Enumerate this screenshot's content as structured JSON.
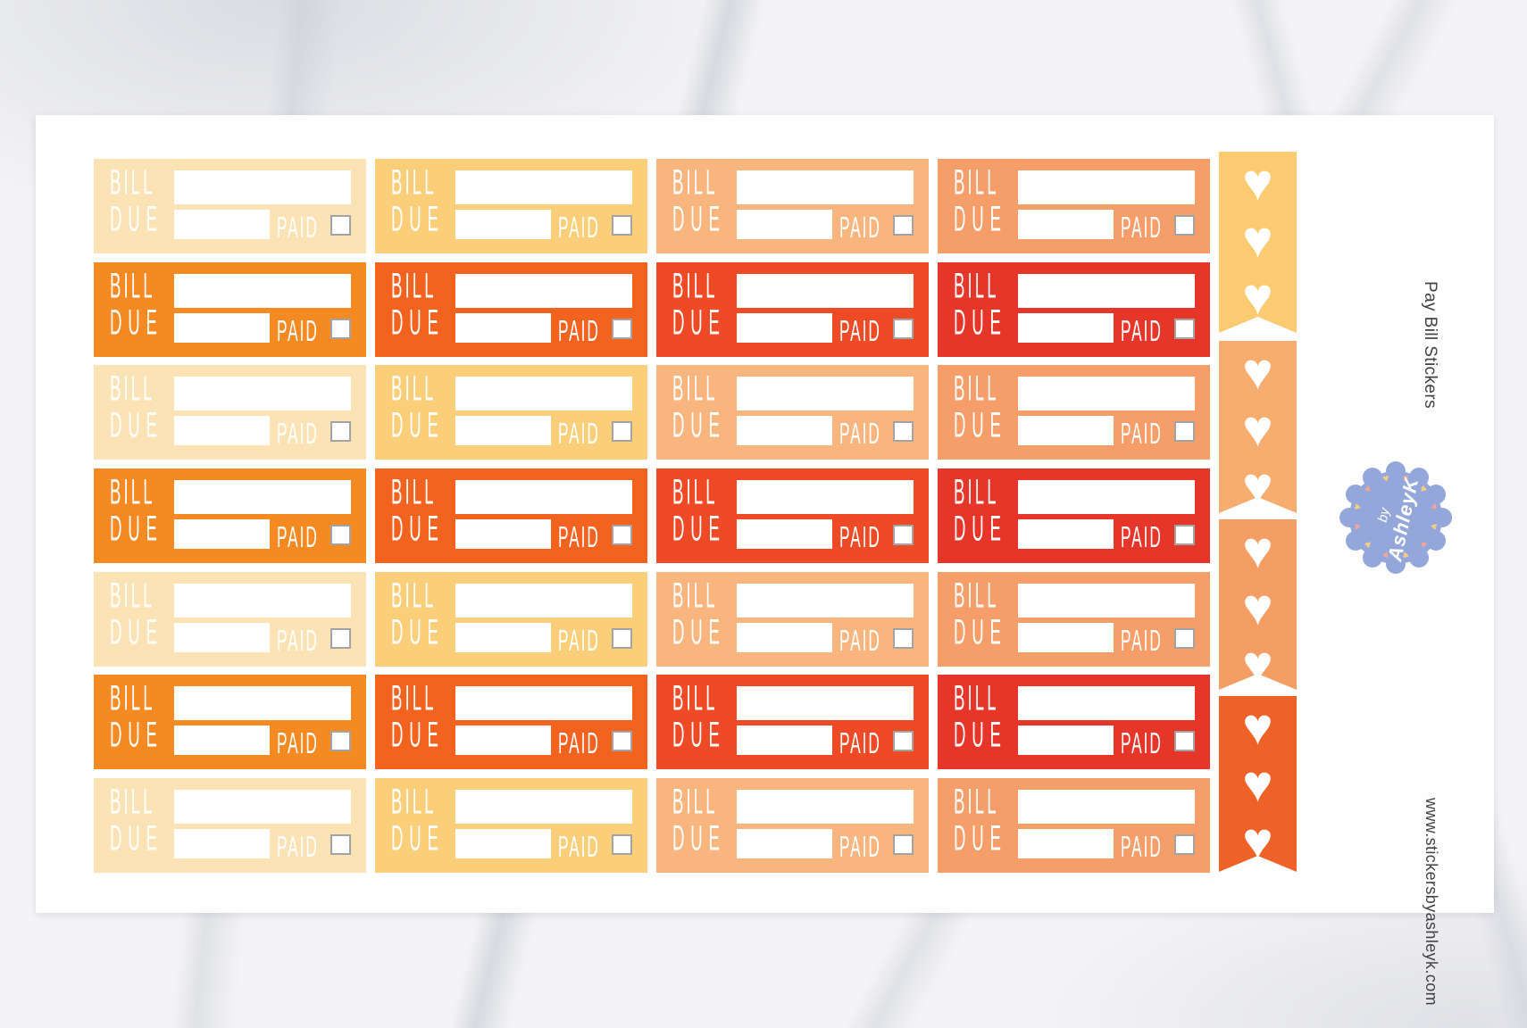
{
  "product": {
    "title": "Pay Bill Stickers",
    "website": "www.stickersbyashleyk.com",
    "caption_color": "#414141"
  },
  "sticker": {
    "bill_label": "BILL",
    "due_label": "DUE",
    "paid_label": "PAID",
    "text_color": "#FFFFFF",
    "field_color": "#FFFFFF",
    "checkbox_border_color": "#A3A3A3"
  },
  "grid": {
    "rows": 7,
    "cols": 4,
    "row_pattern": [
      "light",
      "dark",
      "light",
      "dark",
      "light",
      "dark",
      "light"
    ],
    "light_colors": [
      "#FBE3B5",
      "#FBCE7A",
      "#F8B67E",
      "#F59E69"
    ],
    "dark_colors": [
      "#F68A22",
      "#F26320",
      "#EE4A25",
      "#E63529"
    ]
  },
  "heart_flags": {
    "count": 4,
    "hearts_per_flag": 3,
    "heart_glyph": "♥",
    "heart_color": "#FFFFFF",
    "colors": [
      "#FBCB72",
      "#F7AD6F",
      "#F49D64",
      "#EE6228"
    ]
  },
  "badge": {
    "line1": "by",
    "line2": "AshleyK",
    "color": "#94A7DB",
    "text_color": "#FFFFFF",
    "heart_colors": [
      "#F3CE80",
      "#EFA49E"
    ]
  },
  "sheet_color": "#FEFEFE"
}
